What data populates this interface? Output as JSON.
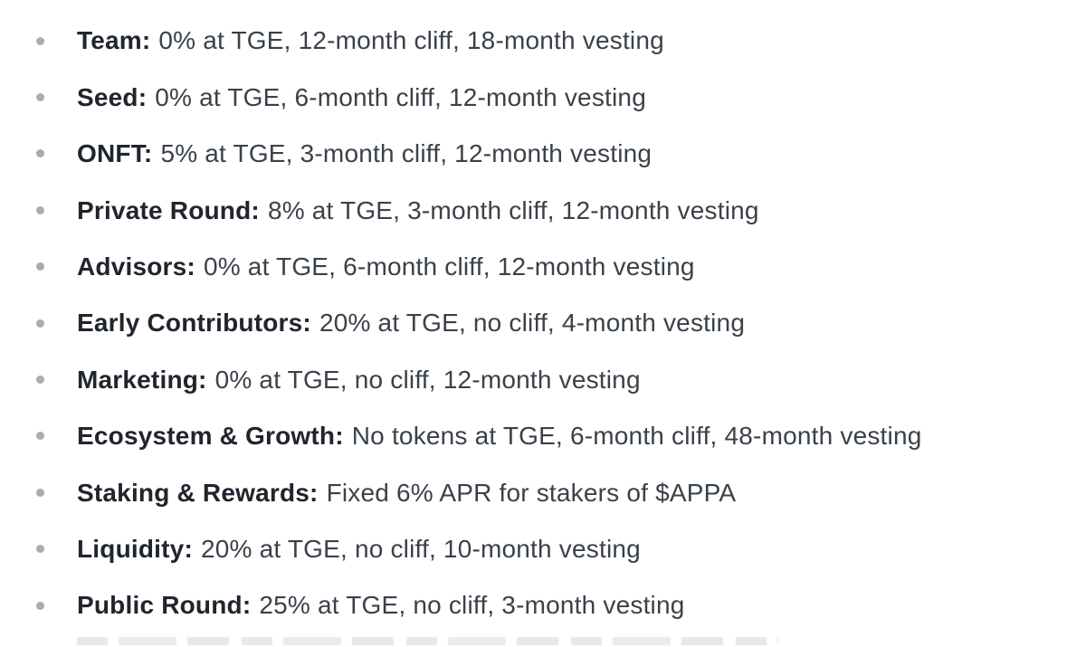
{
  "colors": {
    "page_bg": "#ffffff",
    "bullet": "#a7adb4",
    "label_text": "#20252d",
    "body_text": "#3a4149"
  },
  "vesting_list": {
    "items": [
      {
        "label": "Team:",
        "text": "0% at TGE, 12-month cliff, 18-month vesting"
      },
      {
        "label": "Seed:",
        "text": "0% at TGE, 6-month cliff, 12-month vesting"
      },
      {
        "label": "ONFT:",
        "text": "5% at TGE, 3-month cliff, 12-month vesting"
      },
      {
        "label": "Private Round:",
        "text": "8% at TGE, 3-month cliff, 12-month vesting"
      },
      {
        "label": "Advisors:",
        "text": "0% at TGE, 6-month cliff, 12-month vesting"
      },
      {
        "label": "Early Contributors:",
        "text": "20% at TGE, no cliff, 4-month vesting"
      },
      {
        "label": "Marketing:",
        "text": "0% at TGE, no cliff, 12-month vesting"
      },
      {
        "label": "Ecosystem & Growth:",
        "text": "No tokens at TGE, 6-month cliff, 48-month vesting"
      },
      {
        "label": "Staking & Rewards:",
        "text": "Fixed 6% APR for stakers of $APPA"
      },
      {
        "label": "Liquidity:",
        "text": "20% at TGE, no cliff, 10-month vesting"
      },
      {
        "label": "Public Round:",
        "text": "25% at TGE, no cliff, 3-month vesting"
      }
    ]
  }
}
